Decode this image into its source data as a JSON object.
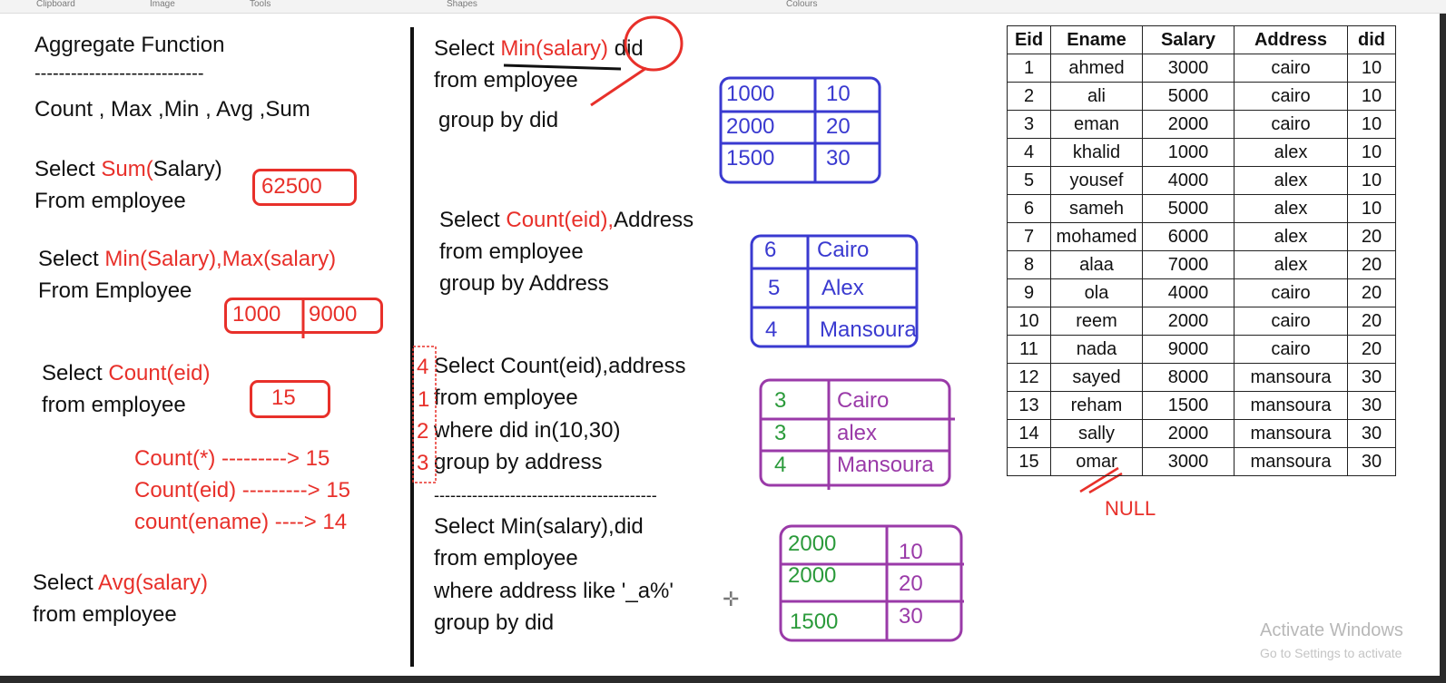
{
  "ribbon": {
    "labels": [
      "Clipboard",
      "Image",
      "Tools",
      "Shapes",
      "Colours"
    ]
  },
  "left": {
    "title": "Aggregate Function",
    "dashes": "----------------------------",
    "func_list": "Count , Max ,Min , Avg ,Sum",
    "q1_select": "Select ",
    "q1_fn": "Sum(",
    "q1_arg": "Salary)",
    "q1_from": "From employee",
    "q1_result": "62500",
    "q2_select": "Select ",
    "q2_fn": "Min(Salary),Max(salary)",
    "q2_from": "From Employee",
    "q2_r1": "1000",
    "q2_r2": "9000",
    "q3_select": "Select ",
    "q3_fn": "Count(eid)",
    "q3_from": "from employee",
    "q3_result": "15",
    "note1": "Count(*)      ---------> 15",
    "note2": "Count(eid) ---------> 15",
    "note3": "count(ename) ----> 14",
    "q4_select": "Select ",
    "q4_fn": "Avg(salary)",
    "q4_from": "from employee"
  },
  "middle": {
    "q1_select": "Select ",
    "q1_fn": "Min(salary)",
    "q1_did": "did",
    "q1_from": "from employee",
    "q1_group": "group by did",
    "r1": [
      [
        "1000",
        "10"
      ],
      [
        "2000",
        "20"
      ],
      [
        "1500",
        "30"
      ]
    ],
    "q2_select": "Select ",
    "q2_fn": "Count(eid),",
    "q2_addr": "Address",
    "q2_from": "from employee",
    "q2_group": "group by Address",
    "r2": [
      [
        "6",
        "Cairo"
      ],
      [
        "5",
        "Alex"
      ],
      [
        "4",
        "Mansoura"
      ]
    ],
    "q3_line1": "Select Count(eid),address",
    "q3_line2": "from employee",
    "q3_line3": "where did in(10,30)",
    "q3_line4": "group by address",
    "q3_side": [
      "4",
      "1",
      "2",
      "3"
    ],
    "r3": [
      [
        "3",
        "Cairo"
      ],
      [
        "3",
        "alex"
      ],
      [
        "4",
        "Mansoura"
      ]
    ],
    "separator": "-----------------------------------------",
    "q4_line1": "Select Min(salary),did",
    "q4_line2": "from employee",
    "q4_line3": "where address like '_a%'",
    "q4_line4": "group by did",
    "r4": [
      [
        "2000",
        "10"
      ],
      [
        "2000",
        "20"
      ],
      [
        "1500",
        "30"
      ]
    ]
  },
  "table": {
    "headers": [
      "Eid",
      "Ename",
      "Salary",
      "Address",
      "did"
    ],
    "rows": [
      [
        "1",
        "ahmed",
        "3000",
        "cairo",
        "10"
      ],
      [
        "2",
        "ali",
        "5000",
        "cairo",
        "10"
      ],
      [
        "3",
        "eman",
        "2000",
        "cairo",
        "10"
      ],
      [
        "4",
        "khalid",
        "1000",
        "alex",
        "10"
      ],
      [
        "5",
        "yousef",
        "4000",
        "alex",
        "10"
      ],
      [
        "6",
        "sameh",
        "5000",
        "alex",
        "10"
      ],
      [
        "7",
        "mohamed",
        "6000",
        "alex",
        "20"
      ],
      [
        "8",
        "alaa",
        "7000",
        "alex",
        "20"
      ],
      [
        "9",
        "ola",
        "4000",
        "cairo",
        "20"
      ],
      [
        "10",
        "reem",
        "2000",
        "cairo",
        "20"
      ],
      [
        "11",
        "nada",
        "9000",
        "cairo",
        "20"
      ],
      [
        "12",
        "sayed",
        "8000",
        "mansoura",
        "30"
      ],
      [
        "13",
        "reham",
        "1500",
        "mansoura",
        "30"
      ],
      [
        "14",
        "sally",
        "2000",
        "mansoura",
        "30"
      ],
      [
        "15",
        "omar",
        "3000",
        "mansoura",
        "30"
      ]
    ],
    "null_label": "NULL"
  },
  "watermark": {
    "line1": "Activate Windows",
    "line2": "Go to Settings to activate"
  }
}
